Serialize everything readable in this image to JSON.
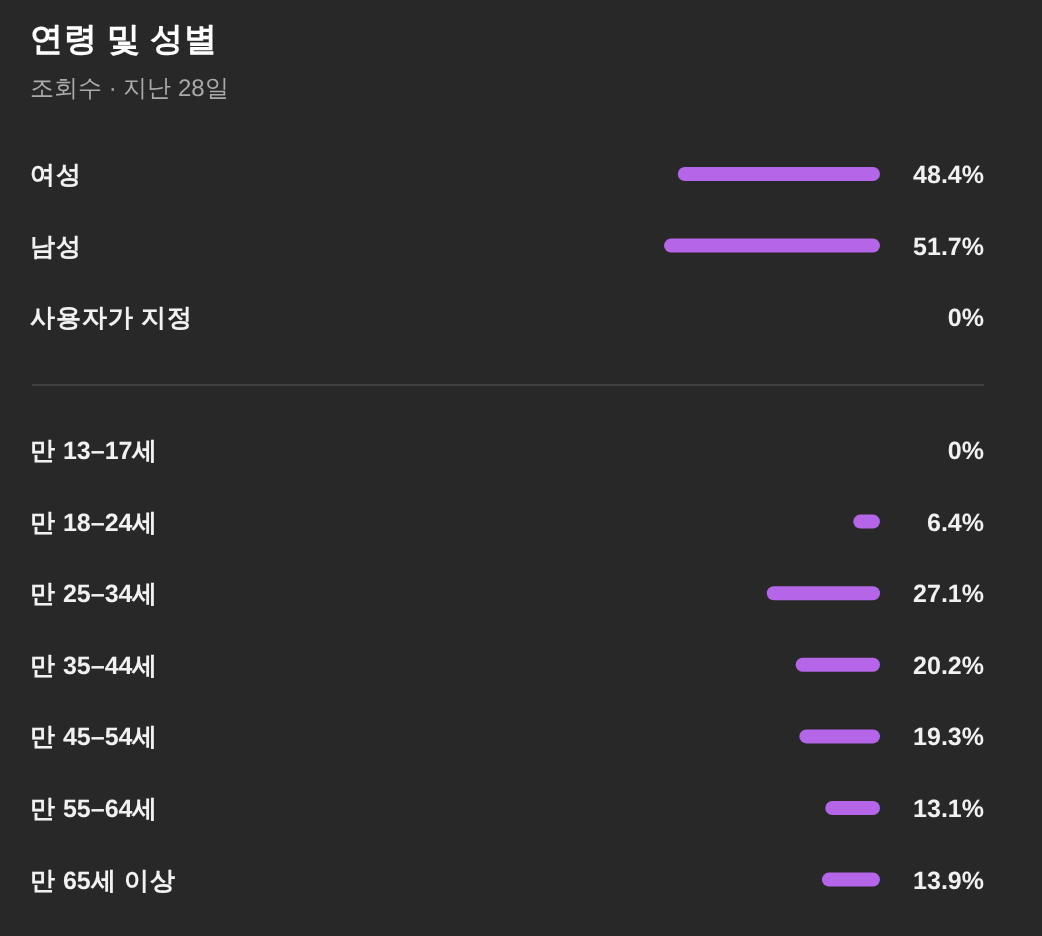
{
  "chart_data": [
    {
      "type": "bar",
      "orientation": "horizontal",
      "title": "연령 및 성별",
      "subtitle": "조회수 · 지난 28일",
      "color": "#b565e8",
      "categories": [
        "여성",
        "남성",
        "사용자가 지정"
      ],
      "values": [
        48.4,
        51.7,
        0
      ],
      "value_labels": [
        "48.4%",
        "51.7%",
        "0%"
      ]
    },
    {
      "type": "bar",
      "orientation": "horizontal",
      "color": "#b565e8",
      "categories": [
        "만 13–17세",
        "만 18–24세",
        "만 25–34세",
        "만 35–44세",
        "만 45–54세",
        "만 55–64세",
        "만 65세 이상"
      ],
      "values": [
        0,
        6.4,
        27.1,
        20.2,
        19.3,
        13.1,
        13.9
      ],
      "value_labels": [
        "0%",
        "6.4%",
        "27.1%",
        "20.2%",
        "19.3%",
        "13.1%",
        "13.9%"
      ]
    }
  ]
}
